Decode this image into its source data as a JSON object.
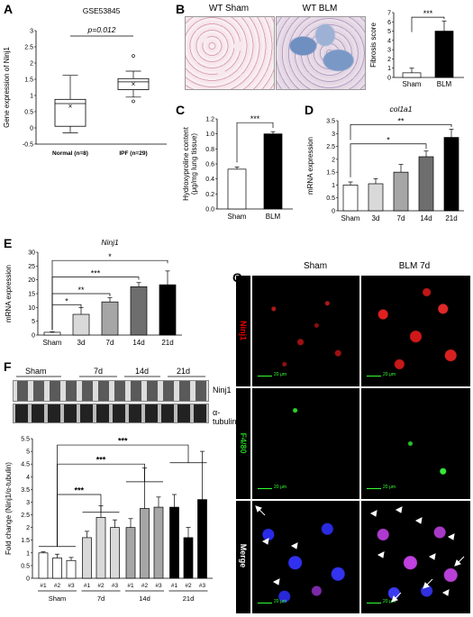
{
  "panels": {
    "A": {
      "label": "A",
      "title": "GSE53845",
      "pvalue": "p=0.012",
      "ylabel": "Gene expression of Ninj1",
      "yticks": [
        "-0.5",
        "0",
        "0.5",
        "1",
        "1.5",
        "2",
        "2.5",
        "3"
      ],
      "groups": [
        "Normal (n=8)",
        "IPF (n=29)"
      ]
    },
    "B": {
      "label": "B",
      "img_labels": [
        "WT Sham",
        "WT BLM"
      ],
      "ylabel": "Fibrosis score",
      "yticks": [
        "0",
        "1",
        "2",
        "3",
        "4",
        "5",
        "6",
        "7"
      ],
      "categories": [
        "Sham",
        "BLM"
      ],
      "sig": "***"
    },
    "C": {
      "label": "C",
      "ylabel_line1": "Hydroxyproline content",
      "ylabel_line2": "(μg/mg lung tissue)",
      "yticks": [
        "0.0",
        "0.2",
        "0.4",
        "0.6",
        "0.8",
        "1.0",
        "1.2"
      ],
      "categories": [
        "Sham",
        "BLM"
      ],
      "sig": "***"
    },
    "D": {
      "label": "D",
      "title": "col1a1",
      "ylabel": "mRNA expression",
      "yticks": [
        "0",
        "0.5",
        "1",
        "1.5",
        "2",
        "2.5",
        "3",
        "3.5"
      ],
      "categories": [
        "Sham",
        "3d",
        "7d",
        "14d",
        "21d"
      ],
      "sig": [
        "*",
        "**"
      ]
    },
    "E": {
      "label": "E",
      "title": "Ninj1",
      "ylabel": "mRNA expression",
      "yticks": [
        "0",
        "5",
        "10",
        "15",
        "20",
        "25",
        "30"
      ],
      "categories": [
        "Sham",
        "3d",
        "7d",
        "14d",
        "21d"
      ],
      "sig": [
        "*",
        "**",
        "***",
        "*"
      ]
    },
    "F": {
      "label": "F",
      "blot_groups": [
        "Sham",
        "7d",
        "14d",
        "21d"
      ],
      "blot_bands": [
        "Ninj1",
        "α-tubulin"
      ],
      "ylabel": "Fold change (Ninj1/α-tubulin)",
      "yticks": [
        "0",
        "0.5",
        "1",
        "1.5",
        "2",
        "2.5",
        "3",
        "3.5",
        "4",
        "4.5",
        "5",
        "5.5"
      ],
      "lane_labels": [
        "#1",
        "#2",
        "#3",
        "#1",
        "#2",
        "#3",
        "#1",
        "#2",
        "#3",
        "#1",
        "#2",
        "#3"
      ],
      "group_labels": [
        "Sham",
        "7d",
        "14d",
        "21d"
      ],
      "sig": [
        "***",
        "***",
        "***"
      ]
    },
    "G": {
      "label": "G",
      "cols": [
        "Sham",
        "BLM 7d"
      ],
      "rows": [
        "Ninj1",
        "F4/80",
        "Merge"
      ],
      "scale": "20 μm"
    }
  },
  "chart_data": [
    {
      "panel": "A",
      "type": "box",
      "title": "GSE53845",
      "ylabel": "Gene expression of Ninj1",
      "ylim": [
        -0.5,
        3
      ],
      "categories": [
        "Normal (n=8)",
        "IPF (n=29)"
      ],
      "boxes": [
        {
          "min": -0.15,
          "q1": 0.05,
          "median": 0.75,
          "q3": 0.88,
          "max": 1.62,
          "mean": 0.66,
          "outliers": []
        },
        {
          "min": 0.95,
          "q1": 1.18,
          "median": 1.42,
          "q3": 1.52,
          "max": 1.75,
          "mean": 1.35,
          "outliers": [
            2.22,
            0.82
          ]
        }
      ],
      "annotation": "p=0.012"
    },
    {
      "panel": "B",
      "type": "bar",
      "ylabel": "Fibrosis score",
      "ylim": [
        0,
        7
      ],
      "categories": [
        "Sham",
        "BLM"
      ],
      "values": [
        0.5,
        5.0
      ],
      "errors": [
        0.5,
        1.1
      ],
      "colors": [
        "#ffffff",
        "#000000"
      ]
    },
    {
      "panel": "C",
      "type": "bar",
      "ylabel": "Hydroxyproline content (μg/mg lung tissue)",
      "ylim": [
        0,
        1.2
      ],
      "categories": [
        "Sham",
        "BLM"
      ],
      "values": [
        0.53,
        1.0
      ],
      "errors": [
        0.03,
        0.03
      ],
      "colors": [
        "#ffffff",
        "#000000"
      ]
    },
    {
      "panel": "D",
      "type": "bar",
      "title": "col1a1",
      "ylabel": "mRNA expression",
      "ylim": [
        0,
        3.5
      ],
      "categories": [
        "Sham",
        "3d",
        "7d",
        "14d",
        "21d"
      ],
      "values": [
        1.0,
        1.05,
        1.5,
        2.1,
        2.85
      ],
      "errors": [
        0.12,
        0.2,
        0.3,
        0.22,
        0.32
      ],
      "colors": [
        "#ffffff",
        "#d9d9d9",
        "#a6a6a6",
        "#6e6e6e",
        "#000000"
      ]
    },
    {
      "panel": "E",
      "type": "bar",
      "title": "Ninj1",
      "ylabel": "mRNA expression",
      "ylim": [
        0,
        30
      ],
      "categories": [
        "Sham",
        "3d",
        "7d",
        "14d",
        "21d"
      ],
      "values": [
        1.0,
        7.5,
        12.0,
        17.5,
        18.2
      ],
      "errors": [
        0.2,
        2.5,
        1.5,
        1.5,
        5.0
      ],
      "colors": [
        "#ffffff",
        "#d9d9d9",
        "#a6a6a6",
        "#6e6e6e",
        "#000000"
      ]
    },
    {
      "panel": "F",
      "type": "bar",
      "ylabel": "Fold change (Ninj1/α-tubulin)",
      "ylim": [
        0,
        5.5
      ],
      "categories": [
        "#1",
        "#2",
        "#3",
        "#1",
        "#2",
        "#3",
        "#1",
        "#2",
        "#3",
        "#1",
        "#2",
        "#3"
      ],
      "values": [
        1.0,
        0.8,
        0.7,
        1.6,
        2.4,
        2.0,
        2.0,
        2.75,
        2.8,
        2.8,
        1.6,
        3.1
      ],
      "errors": [
        0.04,
        0.15,
        0.12,
        0.25,
        0.45,
        0.3,
        0.35,
        1.6,
        0.4,
        0.5,
        0.4,
        1.9
      ],
      "colors": [
        "#ffffff",
        "#ffffff",
        "#ffffff",
        "#d9d9d9",
        "#d9d9d9",
        "#d9d9d9",
        "#a6a6a6",
        "#a6a6a6",
        "#a6a6a6",
        "#000000",
        "#000000",
        "#000000"
      ]
    }
  ]
}
